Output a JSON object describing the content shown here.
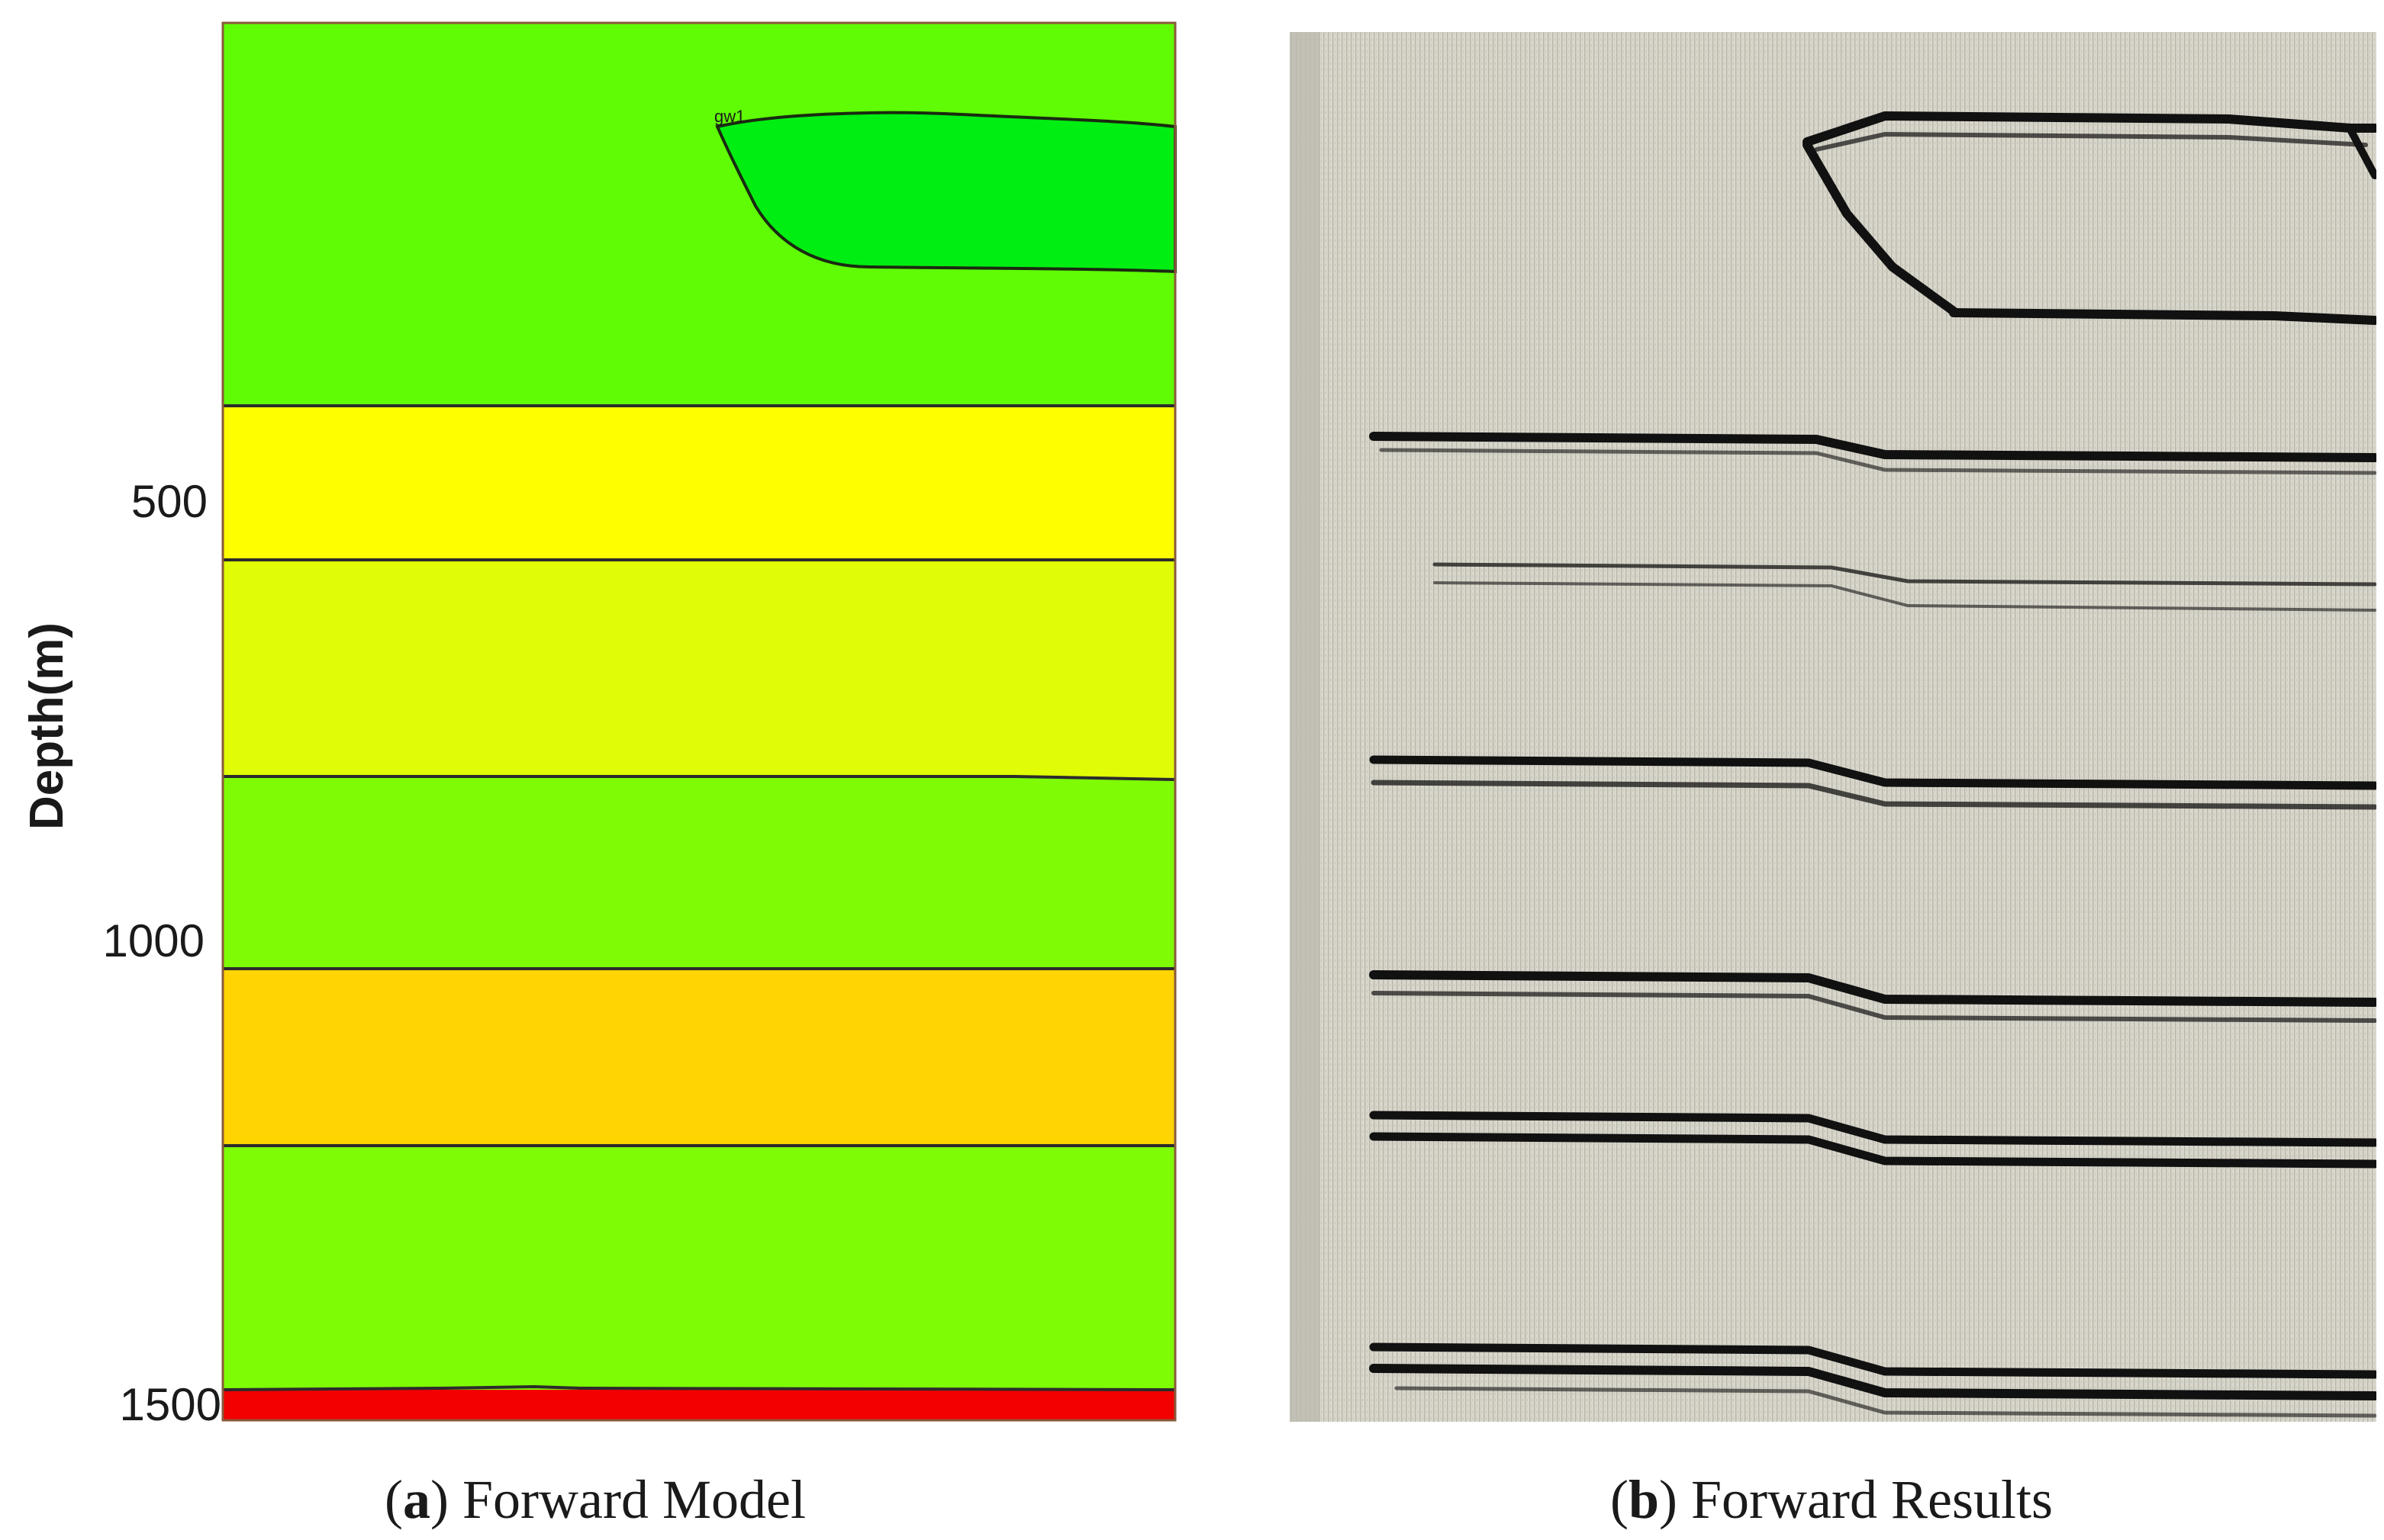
{
  "panel_a": {
    "y_axis_label": "Depth(m)",
    "depth_ticks": [
      "500",
      "1000",
      "1500"
    ],
    "well_label": "gw1",
    "caption": {
      "open": "(",
      "letter": "a",
      "close": ")",
      "text": " Forward Model"
    },
    "layers": [
      {
        "color": "#5ffc05"
      },
      {
        "color": "#fffe00"
      },
      {
        "color": "#e0fc06"
      },
      {
        "color": "#7ffc05"
      },
      {
        "color": "#ffd400"
      },
      {
        "color": "#7efc05"
      },
      {
        "color": "#f20000"
      }
    ],
    "lens_color": "#00ee12"
  },
  "panel_b": {
    "caption": {
      "open": "(",
      "letter": "b",
      "close": ")",
      "text": " Forward Results"
    },
    "background_color": "#d9d7cc",
    "reflector_color": "#111111"
  }
}
